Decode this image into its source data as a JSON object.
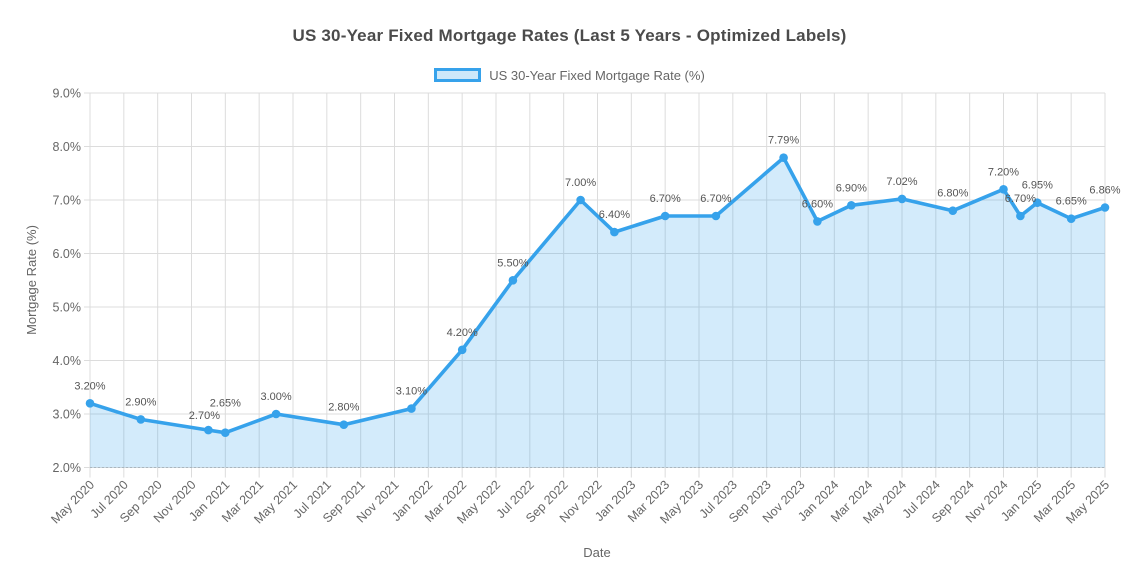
{
  "header": {
    "title": "US 30-Year Fixed Mortgage Rates (Last 5 Years - Optimized Labels)"
  },
  "chart_data": {
    "type": "area",
    "title": "US 30-Year Fixed Mortgage Rates (Last 5 Years - Optimized Labels)",
    "xlabel": "Date",
    "ylabel": "Mortgage Rate (%)",
    "ylim": [
      2.0,
      9.0
    ],
    "grid": true,
    "legend_position": "top",
    "y_tick_labels": [
      "2.0%",
      "3.0%",
      "4.0%",
      "5.0%",
      "6.0%",
      "7.0%",
      "8.0%",
      "9.0%"
    ],
    "x_tick_labels": [
      "May 2020",
      "Jul 2020",
      "Sep 2020",
      "Nov 2020",
      "Jan 2021",
      "Mar 2021",
      "May 2021",
      "Jul 2021",
      "Sep 2021",
      "Nov 2021",
      "Jan 2022",
      "Mar 2022",
      "May 2022",
      "Jul 2022",
      "Sep 2022",
      "Nov 2022",
      "Jan 2023",
      "Mar 2023",
      "May 2023",
      "Jul 2023",
      "Sep 2023",
      "Nov 2023",
      "Jan 2024",
      "Mar 2024",
      "May 2024",
      "Jul 2024",
      "Sep 2024",
      "Nov 2024",
      "Jan 2025",
      "Mar 2025",
      "May 2025"
    ],
    "colors": {
      "line": "#36A2EB",
      "fill": "rgba(54,162,235,0.22)",
      "grid": "#dcdcdc",
      "axis_border": "#b9b9b9",
      "tick_text": "#666666",
      "title_text": "#4b4b4b",
      "point_label": "#555555"
    },
    "series": [
      {
        "name": "US 30-Year Fixed Mortgage Rate (%)",
        "points": [
          {
            "date": "May 2020",
            "value": 3.2,
            "label": "3.20%"
          },
          {
            "date": "Aug 2020",
            "value": 2.9,
            "label": "2.90%"
          },
          {
            "date": "Dec 2020",
            "value": 2.7,
            "label": "2.70%",
            "label_dy": 15,
            "label_dx": -4
          },
          {
            "date": "Jan 2021",
            "value": 2.65,
            "label": "2.65%",
            "label_dy": 30
          },
          {
            "date": "Apr 2021",
            "value": 3.0,
            "label": "3.00%"
          },
          {
            "date": "Aug 2021",
            "value": 2.8,
            "label": "2.80%"
          },
          {
            "date": "Dec 2021",
            "value": 3.1,
            "label": "3.10%"
          },
          {
            "date": "Mar 2022",
            "value": 4.2,
            "label": "4.20%"
          },
          {
            "date": "Jun 2022",
            "value": 5.5,
            "label": "5.50%"
          },
          {
            "date": "Oct 2022",
            "value": 7.0,
            "label": "7.00%"
          },
          {
            "date": "Dec 2022",
            "value": 6.4,
            "label": "6.40%"
          },
          {
            "date": "Mar 2023",
            "value": 6.7,
            "label": "6.70%"
          },
          {
            "date": "Jun 2023",
            "value": 6.7,
            "label": "6.70%"
          },
          {
            "date": "Oct 2023",
            "value": 7.79,
            "label": "7.79%"
          },
          {
            "date": "Dec 2023",
            "value": 6.6,
            "label": "6.60%"
          },
          {
            "date": "Feb 2024",
            "value": 6.9,
            "label": "6.90%"
          },
          {
            "date": "May 2024",
            "value": 7.02,
            "label": "7.02%"
          },
          {
            "date": "Aug 2024",
            "value": 6.8,
            "label": "6.80%"
          },
          {
            "date": "Nov 2024",
            "value": 7.2,
            "label": "7.20%"
          },
          {
            "date": "Dec 2024",
            "value": 6.7,
            "label": "6.70%"
          },
          {
            "date": "Jan 2025",
            "value": 6.95,
            "label": "6.95%"
          },
          {
            "date": "Mar 2025",
            "value": 6.65,
            "label": "6.65%"
          },
          {
            "date": "May 2025",
            "value": 6.86,
            "label": "6.86%"
          }
        ]
      }
    ]
  }
}
